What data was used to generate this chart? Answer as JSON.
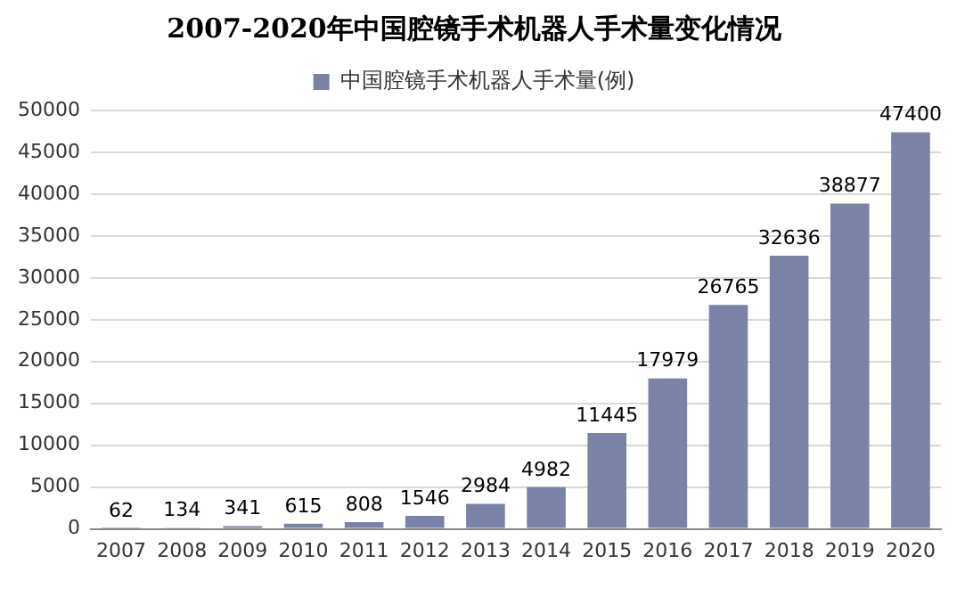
{
  "chart_data": {
    "type": "bar",
    "title": "2007-2020年中国腔镜手术机器人手术量变化情况",
    "categories": [
      "2007",
      "2008",
      "2009",
      "2010",
      "2011",
      "2012",
      "2013",
      "2014",
      "2015",
      "2016",
      "2017",
      "2018",
      "2019",
      "2020"
    ],
    "series": [
      {
        "name": "中国腔镜手术机器人手术量(例)",
        "color": "#7b82a8",
        "values": [
          62,
          134,
          341,
          615,
          808,
          1546,
          2984,
          4982,
          11445,
          17979,
          26765,
          32636,
          38877,
          47400
        ]
      }
    ],
    "ylim": [
      0,
      50000
    ],
    "yticks": [
      0,
      5000,
      10000,
      15000,
      20000,
      25000,
      30000,
      35000,
      40000,
      45000,
      50000
    ],
    "grid": "y",
    "legend": "top",
    "data_labels": true
  }
}
